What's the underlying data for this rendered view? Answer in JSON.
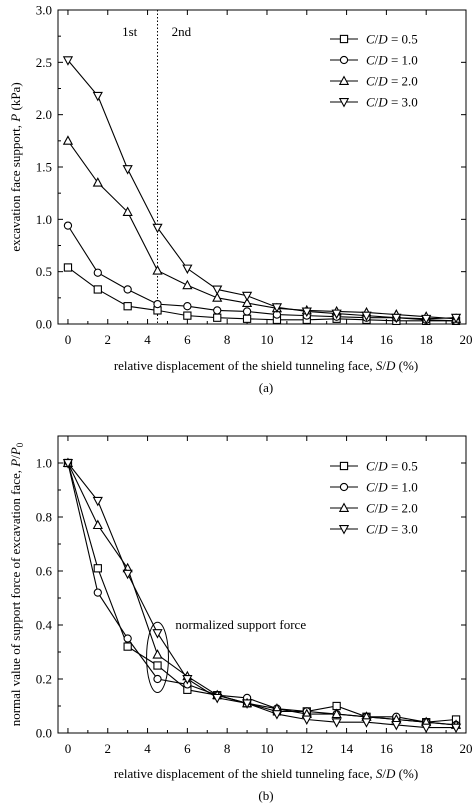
{
  "chart_data": [
    {
      "type": "line",
      "caption": "(a)",
      "xlabel": "relative displacement of the shield tunneling face, S/D (%)",
      "xlabel_parts": [
        "relative displacement of the shield tunneling face, ",
        "S",
        "/",
        "D",
        " (%)"
      ],
      "ylabel": "excavation face support, P (kPa)",
      "ylabel_parts": [
        "excavation face support, ",
        "P",
        " (kPa)"
      ],
      "xlim": [
        -0.5,
        20
      ],
      "ylim": [
        0,
        3.0
      ],
      "xticks": [
        0,
        2,
        4,
        6,
        8,
        10,
        12,
        14,
        16,
        18,
        20
      ],
      "yticks": [
        0.0,
        0.5,
        1.0,
        1.5,
        2.0,
        2.5,
        3.0
      ],
      "ytick_labels": [
        "0.0",
        "0.5",
        "1.0",
        "1.5",
        "2.0",
        "2.5",
        "3.0"
      ],
      "grid": false,
      "legend_position": "top-right",
      "annotations": [
        {
          "text": "1st",
          "x": 3.1,
          "y": 2.75
        },
        {
          "text": "2nd",
          "x": 5.7,
          "y": 2.75
        }
      ],
      "vline": {
        "x": 4.5,
        "style": "dotted"
      },
      "series": [
        {
          "name": "C/D = 0.5",
          "marker": "square",
          "x": [
            0,
            1.5,
            3,
            4.5,
            6,
            7.5,
            9,
            10.5,
            12,
            13.5,
            15,
            16.5,
            18,
            19.5
          ],
          "y": [
            0.54,
            0.33,
            0.17,
            0.13,
            0.08,
            0.06,
            0.05,
            0.04,
            0.04,
            0.05,
            0.04,
            0.03,
            0.03,
            0.03
          ]
        },
        {
          "name": "C/D = 1.0",
          "marker": "circle",
          "x": [
            0,
            1.5,
            3,
            4.5,
            6,
            7.5,
            9,
            10.5,
            12,
            13.5,
            15,
            16.5,
            18,
            19.5
          ],
          "y": [
            0.94,
            0.49,
            0.33,
            0.19,
            0.17,
            0.13,
            0.12,
            0.09,
            0.08,
            0.07,
            0.06,
            0.06,
            0.04,
            0.03
          ]
        },
        {
          "name": "C/D = 2.0",
          "marker": "triangle-up",
          "x": [
            0,
            1.5,
            3,
            4.5,
            6,
            7.5,
            9,
            10.5,
            12,
            13.5,
            15,
            16.5,
            18,
            19.5
          ],
          "y": [
            1.75,
            1.35,
            1.07,
            0.51,
            0.37,
            0.25,
            0.2,
            0.15,
            0.13,
            0.12,
            0.11,
            0.09,
            0.07,
            0.05
          ]
        },
        {
          "name": "C/D = 3.0",
          "marker": "triangle-down",
          "x": [
            0,
            1.5,
            3,
            4.5,
            6,
            7.5,
            9,
            10.5,
            12,
            13.5,
            15,
            16.5,
            18,
            19.5
          ],
          "y": [
            2.52,
            2.18,
            1.48,
            0.92,
            0.53,
            0.33,
            0.27,
            0.16,
            0.12,
            0.1,
            0.08,
            0.06,
            0.05,
            0.06
          ]
        }
      ]
    },
    {
      "type": "line",
      "caption": "(b)",
      "xlabel": "relative displacement of the shield tunneling face, S/D (%)",
      "xlabel_parts": [
        "relative displacement of the shield tunneling face, ",
        "S",
        "/",
        "D",
        " (%)"
      ],
      "ylabel": "normal value of support force of excavation face, P/P0",
      "ylabel_parts": [
        "normal value of support force of excavation face, ",
        "P",
        "/",
        "P",
        "0"
      ],
      "xlim": [
        -0.5,
        20
      ],
      "ylim": [
        0,
        1.1
      ],
      "xticks": [
        0,
        2,
        4,
        6,
        8,
        10,
        12,
        14,
        16,
        18,
        20
      ],
      "yticks": [
        0.0,
        0.2,
        0.4,
        0.6,
        0.8,
        1.0
      ],
      "ytick_labels": [
        "0.0",
        "0.2",
        "0.4",
        "0.6",
        "0.8",
        "1.0"
      ],
      "grid": false,
      "legend_position": "top-right",
      "annotations": [
        {
          "text": "normalized support force",
          "x": 5.4,
          "y": 0.385
        }
      ],
      "highlight_ellipse": {
        "cx": 4.5,
        "cy": 0.28,
        "rx": 0.55,
        "ry": 0.13
      },
      "series": [
        {
          "name": "C/D = 0.5",
          "marker": "square",
          "x": [
            0,
            1.5,
            3,
            4.5,
            6,
            7.5,
            9,
            10.5,
            12,
            13.5,
            15,
            16.5,
            18,
            19.5
          ],
          "y": [
            1.0,
            0.61,
            0.32,
            0.25,
            0.16,
            0.14,
            0.11,
            0.08,
            0.08,
            0.1,
            0.06,
            0.05,
            0.04,
            0.05
          ]
        },
        {
          "name": "C/D = 1.0",
          "marker": "circle",
          "x": [
            0,
            1.5,
            3,
            4.5,
            6,
            7.5,
            9,
            10.5,
            12,
            13.5,
            15,
            16.5,
            18,
            19.5
          ],
          "y": [
            1.0,
            0.52,
            0.35,
            0.2,
            0.18,
            0.14,
            0.13,
            0.09,
            0.08,
            0.07,
            0.06,
            0.06,
            0.04,
            0.03
          ]
        },
        {
          "name": "C/D = 2.0",
          "marker": "triangle-up",
          "x": [
            0,
            1.5,
            3,
            4.5,
            6,
            7.5,
            9,
            10.5,
            12,
            13.5,
            15,
            16.5,
            18,
            19.5
          ],
          "y": [
            1.0,
            0.77,
            0.61,
            0.29,
            0.21,
            0.14,
            0.11,
            0.09,
            0.07,
            0.07,
            0.06,
            0.05,
            0.04,
            0.03
          ]
        },
        {
          "name": "C/D = 3.0",
          "marker": "triangle-down",
          "x": [
            0,
            1.5,
            3,
            4.5,
            6,
            7.5,
            9,
            10.5,
            12,
            13.5,
            15,
            16.5,
            18,
            19.5
          ],
          "y": [
            1.0,
            0.86,
            0.59,
            0.37,
            0.2,
            0.13,
            0.11,
            0.07,
            0.05,
            0.04,
            0.04,
            0.03,
            0.02,
            0.02
          ]
        }
      ]
    }
  ]
}
